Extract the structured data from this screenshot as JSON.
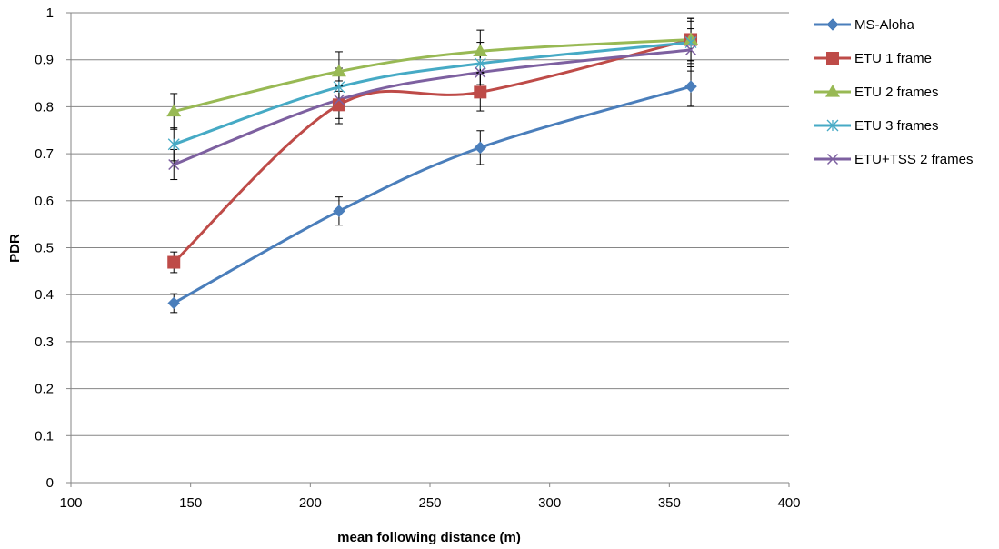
{
  "chart_data": {
    "type": "line",
    "title": "",
    "xlabel": "mean following distance (m)",
    "ylabel": "PDR",
    "xlim": [
      100,
      400
    ],
    "ylim": [
      0,
      1
    ],
    "x_ticks": [
      "100",
      "150",
      "200",
      "250",
      "300",
      "350",
      "400"
    ],
    "y_ticks": [
      "0",
      "0.1",
      "0.2",
      "0.3",
      "0.4",
      "0.5",
      "0.6",
      "0.7",
      "0.8",
      "0.9",
      "1"
    ],
    "grid": "horizontal",
    "smooth": true,
    "error_bars": true,
    "legend_position": "right",
    "x": [
      143,
      212,
      271,
      359
    ],
    "series": [
      {
        "name": "MS-Aloha",
        "color": "#4a7ebb",
        "marker": "diamond",
        "values": [
          0.382,
          0.578,
          0.713,
          0.843
        ],
        "errors": [
          0.02,
          0.03,
          0.036,
          0.042
        ]
      },
      {
        "name": "ETU 1 frame",
        "color": "#be4b48",
        "marker": "square",
        "values": [
          0.469,
          0.804,
          0.831,
          0.943
        ],
        "errors": [
          0.022,
          0.04,
          0.04,
          0.045
        ]
      },
      {
        "name": "ETU 2 frames",
        "color": "#98b954",
        "marker": "triangle",
        "values": [
          0.79,
          0.875,
          0.918,
          0.943
        ],
        "errors": [
          0.038,
          0.042,
          0.045,
          0.045
        ]
      },
      {
        "name": "ETU 3 frames",
        "color": "#46aac5",
        "marker": "asterisk",
        "values": [
          0.72,
          0.842,
          0.892,
          0.937
        ],
        "errors": [
          0.035,
          0.04,
          0.045,
          0.045
        ]
      },
      {
        "name": "ETU+TSS 2 frames",
        "color": "#7d60a0",
        "marker": "x",
        "values": [
          0.677,
          0.815,
          0.873,
          0.921
        ],
        "errors": [
          0.032,
          0.04,
          0.042,
          0.045
        ]
      }
    ]
  }
}
